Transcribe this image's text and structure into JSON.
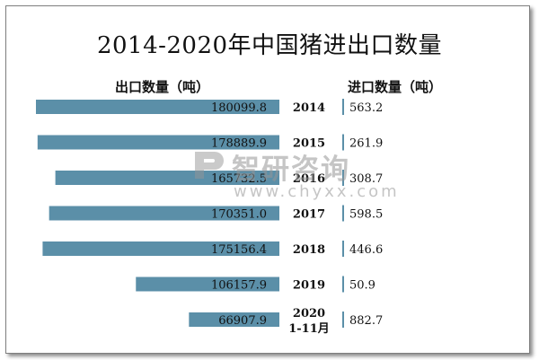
{
  "chart_data": {
    "type": "bar",
    "title": "2014-2020年中国猪进出口数量",
    "left_header": "出口数量（吨）",
    "right_header": "进口数量（吨）",
    "categories": [
      "2014",
      "2015",
      "2016",
      "2017",
      "2018",
      "2019",
      "2020\n1-11月"
    ],
    "series": [
      {
        "name": "出口数量（吨）",
        "values": [
          180099.8,
          178889.9,
          165732.5,
          170351.0,
          175156.4,
          106157.9,
          66907.9
        ],
        "labels": [
          "180099.8",
          "178889.9",
          "165732.5",
          "170351.0",
          "175156.4",
          "106157.9",
          "66907.9"
        ]
      },
      {
        "name": "进口数量（吨）",
        "values": [
          563.2,
          261.9,
          308.7,
          598.5,
          446.6,
          50.9,
          882.7
        ],
        "labels": [
          "563.2",
          "261.9",
          "308.7",
          "598.5",
          "446.6",
          "50.9",
          "882.7"
        ]
      }
    ],
    "bar_color": "#5b8fa8",
    "grid": false
  },
  "watermark": {
    "brand": "智研咨询",
    "url": "www.chyxx.com"
  }
}
